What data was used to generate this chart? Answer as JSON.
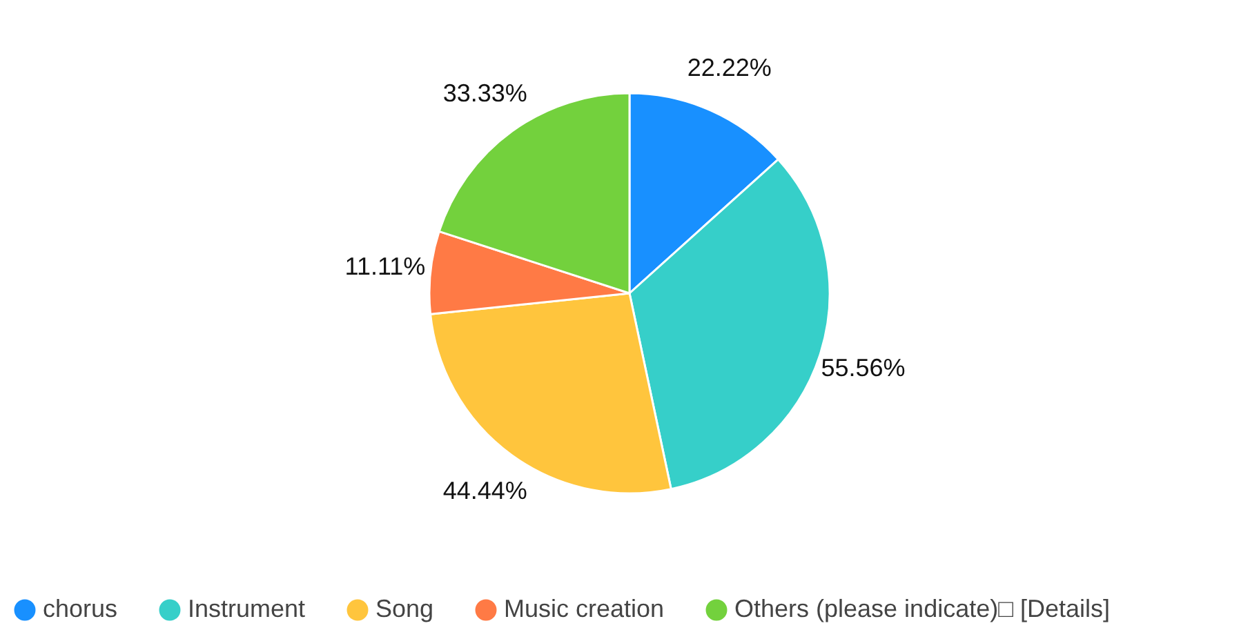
{
  "chart_data": {
    "type": "pie",
    "categories": [
      "chorus",
      "Instrument",
      "Song",
      "Music creation",
      "Others (please indicate)□ [Details]"
    ],
    "values": [
      22.22,
      55.56,
      44.44,
      11.11,
      33.33
    ],
    "colors": [
      "#1890ff",
      "#36cfc9",
      "#ffc53d",
      "#ff7a45",
      "#73d13d"
    ],
    "value_labels": [
      "22.22%",
      "55.56%",
      "44.44%",
      "11.11%",
      "33.33%"
    ],
    "legend": "bottom"
  }
}
